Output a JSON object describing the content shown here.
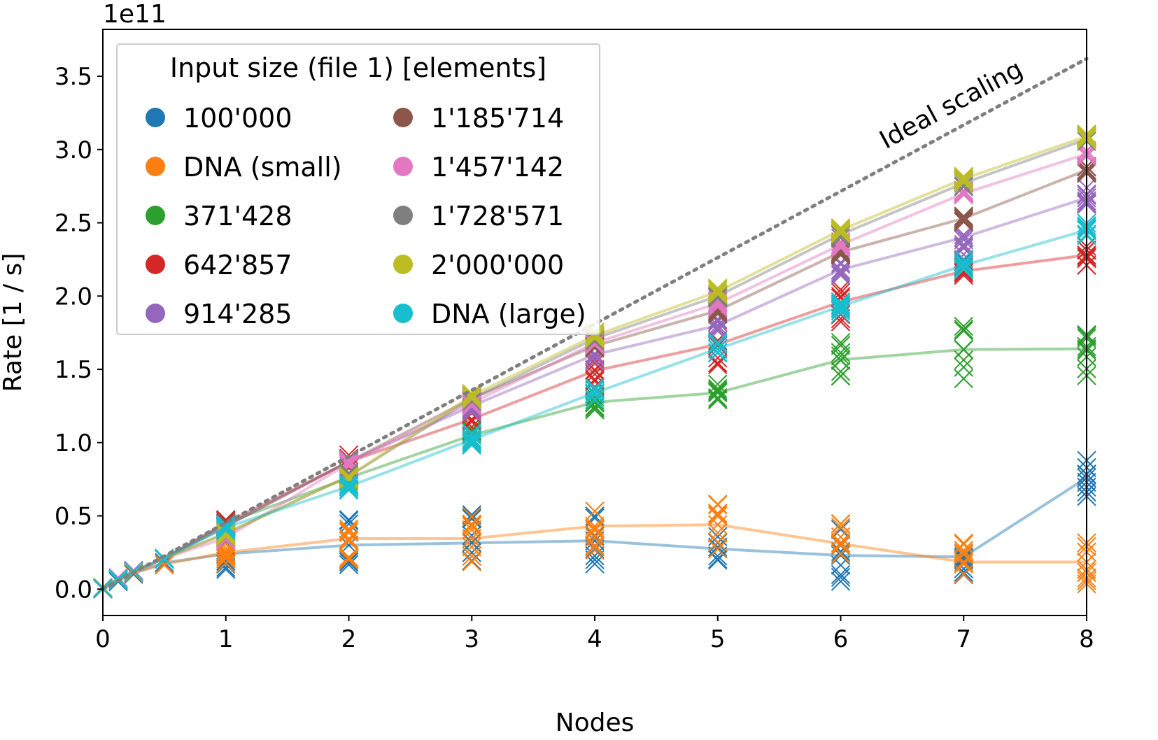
{
  "chart_data": {
    "type": "line",
    "xlabel": "Nodes",
    "ylabel": "Rate [1 / s]",
    "y_offset_label": "1e11",
    "y_scale_factor": 100000000000,
    "xlim": [
      0,
      8
    ],
    "ylim": [
      -0.18,
      3.82
    ],
    "x_ticks": [
      0,
      1,
      2,
      3,
      4,
      5,
      6,
      7,
      8
    ],
    "y_ticks": [
      0.0,
      0.5,
      1.0,
      1.5,
      2.0,
      2.5,
      3.0,
      3.5
    ],
    "x_tick_labels": [
      "0",
      "1",
      "2",
      "3",
      "4",
      "5",
      "6",
      "7",
      "8"
    ],
    "y_tick_labels": [
      "0.0",
      "0.5",
      "1.0",
      "1.5",
      "2.0",
      "2.5",
      "3.0",
      "3.5"
    ],
    "grid": false,
    "legend": {
      "title": "Input size (file 1) [elements]",
      "placement": "upper-left",
      "columns": 2
    },
    "annotation": "Ideal scaling",
    "ideal_scaling": {
      "x": [
        0,
        8
      ],
      "y": [
        0,
        3.62
      ]
    },
    "x": [
      0,
      0.125,
      0.25,
      0.5,
      1,
      2,
      3,
      4,
      5,
      6,
      7,
      8
    ],
    "series": [
      {
        "name": "100'000",
        "color": "#1f77b4",
        "y": [
          0.003,
          0.06,
          0.11,
          0.18,
          0.24,
          0.3,
          0.315,
          0.33,
          0.275,
          0.23,
          0.22,
          0.76
        ],
        "spread": [
          0.3,
          0.4,
          0.4,
          0.4,
          0.4,
          0.4,
          0.3,
          0.3
        ]
      },
      {
        "name": "DNA (small)",
        "color": "#ff7f0e",
        "y": [
          0.003,
          0.06,
          0.11,
          0.17,
          0.25,
          0.345,
          0.345,
          0.43,
          0.44,
          0.31,
          0.185,
          0.185
        ],
        "spread": [
          0.2,
          0.3,
          0.35,
          0.35,
          0.35,
          0.35,
          0.3,
          0.3
        ]
      },
      {
        "name": "371'428",
        "color": "#2ca02c",
        "y": [
          0.004,
          0.07,
          0.12,
          0.21,
          0.45,
          0.76,
          1.05,
          1.275,
          1.34,
          1.565,
          1.635,
          1.64
        ],
        "spread": [
          0.05,
          0.05,
          0.1,
          0.15,
          0.15,
          0.25,
          0.4,
          0.4
        ]
      },
      {
        "name": "642'857",
        "color": "#d62728",
        "y": [
          0.004,
          0.07,
          0.12,
          0.21,
          0.45,
          0.87,
          1.16,
          1.49,
          1.67,
          1.96,
          2.17,
          2.28
        ],
        "spread": [
          0.05,
          0.1,
          0.2,
          0.25,
          0.3,
          0.3,
          0.15,
          0.15
        ]
      },
      {
        "name": "914'285",
        "color": "#9467bd",
        "y": [
          0.004,
          0.07,
          0.12,
          0.21,
          0.43,
          0.87,
          1.25,
          1.6,
          1.8,
          2.18,
          2.4,
          2.67
        ],
        "spread": [
          0.05,
          0.05,
          0.1,
          0.1,
          0.1,
          0.1,
          0.25,
          0.15
        ]
      },
      {
        "name": "1'185'714",
        "color": "#8c564b",
        "y": [
          0.004,
          0.07,
          0.12,
          0.21,
          0.43,
          0.87,
          1.3,
          1.66,
          1.9,
          2.3,
          2.53,
          2.86
        ],
        "spread": [
          0.05,
          0.05,
          0.05,
          0.05,
          0.05,
          0.05,
          0.05,
          0.05
        ]
      },
      {
        "name": "1'457'142",
        "color": "#e377c2",
        "y": [
          0.004,
          0.07,
          0.12,
          0.21,
          0.35,
          0.86,
          1.27,
          1.68,
          1.95,
          2.35,
          2.7,
          2.97
        ],
        "spread": [
          0.05,
          0.05,
          0.05,
          0.05,
          0.05,
          0.05,
          0.05,
          0.05
        ]
      },
      {
        "name": "1'728'571",
        "color": "#7f7f7f",
        "y": [
          0.004,
          0.07,
          0.12,
          0.21,
          0.38,
          0.77,
          1.3,
          1.71,
          2.0,
          2.42,
          2.77,
          3.07
        ],
        "spread": [
          0.05,
          0.05,
          0.05,
          0.05,
          0.05,
          0.05,
          0.05,
          0.05
        ]
      },
      {
        "name": "2'000'000",
        "color": "#bcbd22",
        "y": [
          0.004,
          0.07,
          0.12,
          0.21,
          0.38,
          0.77,
          1.32,
          1.73,
          2.03,
          2.45,
          2.8,
          3.09
        ],
        "spread": [
          0.05,
          0.05,
          0.05,
          0.05,
          0.05,
          0.05,
          0.05,
          0.05
        ]
      },
      {
        "name": "DNA (large)",
        "color": "#17becf",
        "y": [
          0.004,
          0.07,
          0.12,
          0.21,
          0.42,
          0.7,
          1.02,
          1.34,
          1.64,
          1.93,
          2.21,
          2.45
        ],
        "spread": [
          0.05,
          0.05,
          0.1,
          0.1,
          0.1,
          0.1,
          0.1,
          0.1
        ]
      }
    ]
  }
}
